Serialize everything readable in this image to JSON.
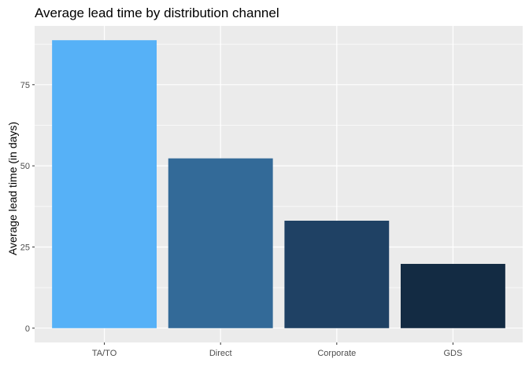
{
  "chart_data": {
    "type": "bar",
    "title": "Average lead time by distribution channel",
    "xlabel": "",
    "ylabel": "Average lead time (in days)",
    "categories": [
      "TA/TO",
      "Direct",
      "Corporate",
      "GDS"
    ],
    "values": [
      88.7,
      52.3,
      33.1,
      19.8
    ],
    "bar_colors": [
      "#56b1f7",
      "#336a98",
      "#1f4164",
      "#132b43"
    ],
    "ylim": [
      -4.4,
      93.1
    ],
    "yticks": [
      0,
      25,
      50,
      75
    ],
    "ytick_labels": [
      "0",
      "25",
      "50",
      "75"
    ],
    "grid": true,
    "legend": "none",
    "panel_background": "#ebebeb",
    "grid_color": "#ffffff"
  }
}
